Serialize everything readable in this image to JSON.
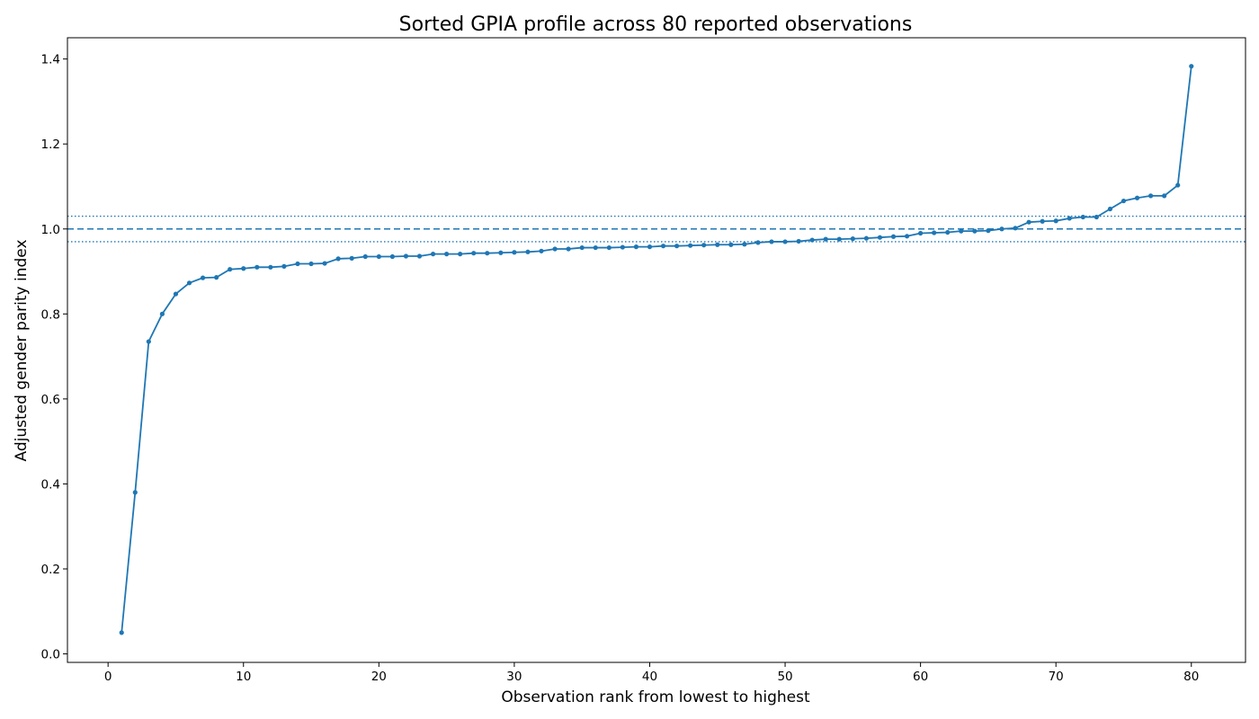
{
  "chart_data": {
    "type": "line",
    "title": "Sorted GPIA profile across 80 reported observations",
    "xlabel": "Observation rank from lowest to highest",
    "ylabel": "Adjusted gender parity index",
    "xlim": [
      -3,
      84
    ],
    "ylim": [
      -0.02,
      1.45
    ],
    "xticks": [
      0,
      10,
      20,
      30,
      40,
      50,
      60,
      70,
      80
    ],
    "xtick_labels": [
      "0",
      "10",
      "20",
      "30",
      "40",
      "50",
      "60",
      "70",
      "80"
    ],
    "yticks": [
      0.0,
      0.2,
      0.4,
      0.6,
      0.8,
      1.0,
      1.2,
      1.4
    ],
    "ytick_labels": [
      "0.0",
      "0.2",
      "0.4",
      "0.6",
      "0.8",
      "1.0",
      "1.2",
      "1.4"
    ],
    "grid": false,
    "series_color": "#1f77b4",
    "reference_lines": [
      {
        "y": 1.0,
        "style": "dashed",
        "color": "#1f77b4"
      },
      {
        "y": 1.03,
        "style": "dotted",
        "color": "#1f77b4"
      },
      {
        "y": 0.97,
        "style": "dotted",
        "color": "#1f77b4"
      }
    ],
    "x": [
      1,
      2,
      3,
      4,
      5,
      6,
      7,
      8,
      9,
      10,
      11,
      12,
      13,
      14,
      15,
      16,
      17,
      18,
      19,
      20,
      21,
      22,
      23,
      24,
      25,
      26,
      27,
      28,
      29,
      30,
      31,
      32,
      33,
      34,
      35,
      36,
      37,
      38,
      39,
      40,
      41,
      42,
      43,
      44,
      45,
      46,
      47,
      48,
      49,
      50,
      51,
      52,
      53,
      54,
      55,
      56,
      57,
      58,
      59,
      60,
      61,
      62,
      63,
      64,
      65,
      66,
      67,
      68,
      69,
      70,
      71,
      72,
      73,
      74,
      75,
      76,
      77,
      78,
      79,
      80
    ],
    "y": [
      0.05,
      0.38,
      0.735,
      0.8,
      0.847,
      0.873,
      0.885,
      0.886,
      0.905,
      0.907,
      0.91,
      0.91,
      0.912,
      0.918,
      0.918,
      0.919,
      0.93,
      0.931,
      0.935,
      0.935,
      0.935,
      0.936,
      0.936,
      0.941,
      0.941,
      0.941,
      0.943,
      0.943,
      0.944,
      0.945,
      0.946,
      0.948,
      0.953,
      0.953,
      0.956,
      0.956,
      0.956,
      0.957,
      0.958,
      0.958,
      0.96,
      0.96,
      0.961,
      0.962,
      0.963,
      0.963,
      0.964,
      0.968,
      0.97,
      0.97,
      0.971,
      0.974,
      0.976,
      0.976,
      0.977,
      0.978,
      0.98,
      0.982,
      0.983,
      0.99,
      0.991,
      0.992,
      0.995,
      0.995,
      0.996,
      1.0,
      1.002,
      1.016,
      1.018,
      1.019,
      1.025,
      1.028,
      1.028,
      1.047,
      1.066,
      1.073,
      1.078,
      1.078,
      1.103,
      1.383
    ]
  }
}
